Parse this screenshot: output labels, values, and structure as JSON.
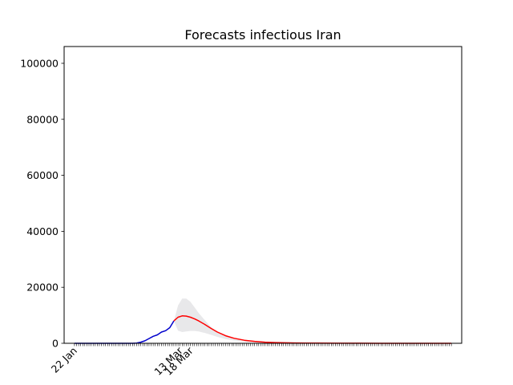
{
  "chart_data": {
    "type": "line",
    "title": "Forecasts infectious Iran",
    "xlabel": "",
    "ylabel": "",
    "x_tick_labels": [
      "22 Jan",
      "13 Mar",
      "18 Mar"
    ],
    "y_ticks": [
      0,
      20000,
      40000,
      60000,
      80000,
      100000
    ],
    "ylim": [
      0,
      106000
    ],
    "grid": false,
    "legend": "none",
    "series": [
      {
        "color": "#0000cc",
        "x": [
          "22 Jan",
          "1 Feb",
          "11 Feb",
          "16 Feb",
          "19 Feb",
          "21 Feb",
          "23 Feb",
          "25 Feb",
          "27 Feb",
          "29 Feb",
          "2 Mar",
          "4 Mar",
          "6 Mar",
          "8 Mar",
          "10 Mar"
        ],
        "values": [
          0,
          0,
          0,
          0,
          0,
          100,
          400,
          900,
          1700,
          2500,
          3000,
          4000,
          4500,
          5600,
          8000
        ]
      },
      {
        "color": "#ff0000",
        "x": [
          "10 Mar",
          "12 Mar",
          "14 Mar",
          "16 Mar",
          "18 Mar",
          "20 Mar",
          "22 Mar",
          "25 Mar",
          "28 Mar",
          "31 Mar",
          "4 Apr",
          "8 Apr",
          "13 Apr",
          "18 Apr",
          "23 Apr",
          "28 Apr",
          "8 May",
          "18 May",
          "28 May",
          "7 Jun",
          "17 Jun",
          "27 Jun",
          "7 Jul",
          "17 Jul",
          "22 Jul"
        ],
        "values": [
          8000,
          9300,
          9800,
          9700,
          9300,
          8700,
          8000,
          6700,
          5300,
          4000,
          2700,
          1800,
          1100,
          700,
          400,
          250,
          120,
          60,
          30,
          15,
          10,
          5,
          3,
          2,
          1
        ]
      }
    ],
    "band": {
      "color": "#e8e8ea",
      "x": [
        "10 Mar",
        "12 Mar",
        "14 Mar",
        "16 Mar",
        "18 Mar",
        "20 Mar",
        "22 Mar",
        "25 Mar",
        "28 Mar",
        "31 Mar",
        "4 Apr",
        "8 Apr",
        "13 Apr",
        "18 Apr",
        "28 Apr",
        "8 May"
      ],
      "upper": [
        8000,
        13500,
        16000,
        16000,
        14800,
        12800,
        10800,
        8200,
        5800,
        4000,
        2500,
        1600,
        900,
        500,
        200,
        80
      ],
      "lower": [
        8000,
        4500,
        4000,
        4200,
        4400,
        4400,
        4200,
        3700,
        3000,
        2300,
        1500,
        1000,
        600,
        300,
        120,
        50
      ]
    }
  }
}
